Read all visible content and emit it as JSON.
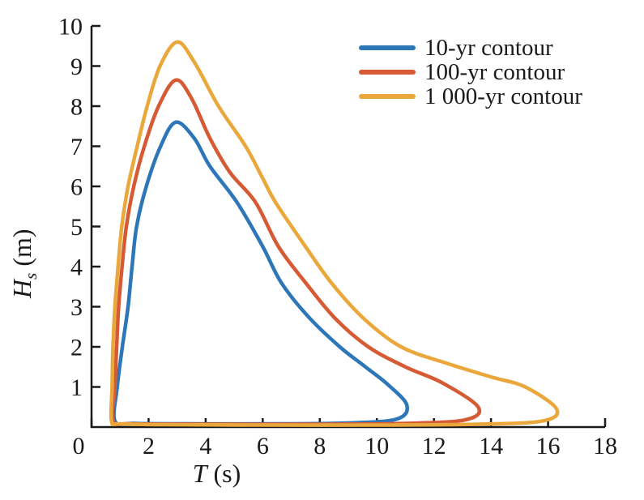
{
  "figure": {
    "background": "#ffffff",
    "text_color": "#1a1a1a",
    "axis_color": "#1a1a1a"
  },
  "chart_data": {
    "type": "line",
    "title": "",
    "xlabel": "T (s)",
    "xlabel_parts": {
      "var": "T",
      "unit": " (s)"
    },
    "ylabel": "Hs (m)",
    "ylabel_parts": {
      "var": "H",
      "sub": "s",
      "unit": " (m)"
    },
    "xlim": [
      0,
      18
    ],
    "ylim": [
      0,
      10
    ],
    "xticks": [
      0,
      2,
      4,
      6,
      8,
      10,
      12,
      14,
      16,
      18
    ],
    "yticks": [
      1,
      2,
      3,
      4,
      5,
      6,
      7,
      8,
      9,
      10
    ],
    "grid": false,
    "legend_position": "top-right",
    "legend_border": false,
    "series": [
      {
        "name": "10-yr contour",
        "color": "#2d76b8",
        "closed": true,
        "peak": {
          "T": 2.95,
          "Hs": 7.6
        },
        "max_T": 11.05,
        "points": [
          [
            0.82,
            0.15
          ],
          [
            0.9,
            1.0
          ],
          [
            1.08,
            2.0
          ],
          [
            1.28,
            3.0
          ],
          [
            1.42,
            4.0
          ],
          [
            1.58,
            5.0
          ],
          [
            1.92,
            6.0
          ],
          [
            2.42,
            7.0
          ],
          [
            2.95,
            7.6
          ],
          [
            3.6,
            7.2
          ],
          [
            4.15,
            6.5
          ],
          [
            5.1,
            5.6
          ],
          [
            6.0,
            4.5
          ],
          [
            6.65,
            3.6
          ],
          [
            7.6,
            2.75
          ],
          [
            8.7,
            2.0
          ],
          [
            9.6,
            1.5
          ],
          [
            10.4,
            1.05
          ],
          [
            11.05,
            0.55
          ],
          [
            10.7,
            0.2
          ],
          [
            9.0,
            0.1
          ],
          [
            6.5,
            0.08
          ],
          [
            3.5,
            0.08
          ],
          [
            1.5,
            0.09
          ]
        ]
      },
      {
        "name": "100-yr contour",
        "color": "#d65a33",
        "closed": true,
        "peak": {
          "T": 2.95,
          "Hs": 8.65
        },
        "max_T": 13.55,
        "points": [
          [
            0.76,
            0.15
          ],
          [
            0.82,
            1.0
          ],
          [
            0.88,
            2.0
          ],
          [
            0.95,
            3.0
          ],
          [
            1.07,
            4.0
          ],
          [
            1.22,
            5.0
          ],
          [
            1.48,
            6.0
          ],
          [
            1.85,
            7.0
          ],
          [
            2.35,
            8.0
          ],
          [
            2.95,
            8.65
          ],
          [
            3.5,
            8.2
          ],
          [
            4.15,
            7.2
          ],
          [
            4.85,
            6.35
          ],
          [
            5.75,
            5.6
          ],
          [
            6.55,
            4.5
          ],
          [
            7.5,
            3.6
          ],
          [
            8.55,
            2.7
          ],
          [
            9.7,
            2.0
          ],
          [
            11.0,
            1.5
          ],
          [
            12.3,
            1.1
          ],
          [
            13.55,
            0.5
          ],
          [
            13.1,
            0.18
          ],
          [
            11.0,
            0.09
          ],
          [
            8.0,
            0.07
          ],
          [
            4.5,
            0.07
          ],
          [
            1.4,
            0.08
          ]
        ]
      },
      {
        "name": "1 000-yr contour",
        "color": "#eaa83c",
        "closed": true,
        "peak": {
          "T": 3.0,
          "Hs": 9.6
        },
        "max_T": 16.3,
        "points": [
          [
            0.7,
            0.15
          ],
          [
            0.72,
            1.0
          ],
          [
            0.75,
            2.0
          ],
          [
            0.82,
            3.0
          ],
          [
            0.93,
            4.0
          ],
          [
            1.06,
            5.0
          ],
          [
            1.28,
            6.0
          ],
          [
            1.6,
            7.0
          ],
          [
            1.95,
            8.0
          ],
          [
            2.4,
            9.0
          ],
          [
            3.0,
            9.6
          ],
          [
            3.6,
            9.1
          ],
          [
            4.45,
            8.0
          ],
          [
            5.4,
            7.0
          ],
          [
            6.0,
            6.2
          ],
          [
            6.45,
            5.6
          ],
          [
            7.4,
            4.6
          ],
          [
            8.4,
            3.6
          ],
          [
            9.55,
            2.7
          ],
          [
            10.85,
            2.0
          ],
          [
            12.4,
            1.6
          ],
          [
            14.0,
            1.25
          ],
          [
            15.2,
            1.0
          ],
          [
            16.3,
            0.45
          ],
          [
            15.8,
            0.15
          ],
          [
            13.5,
            0.07
          ],
          [
            10.0,
            0.05
          ],
          [
            6.0,
            0.05
          ],
          [
            2.5,
            0.06
          ],
          [
            1.0,
            0.08
          ]
        ]
      }
    ]
  }
}
